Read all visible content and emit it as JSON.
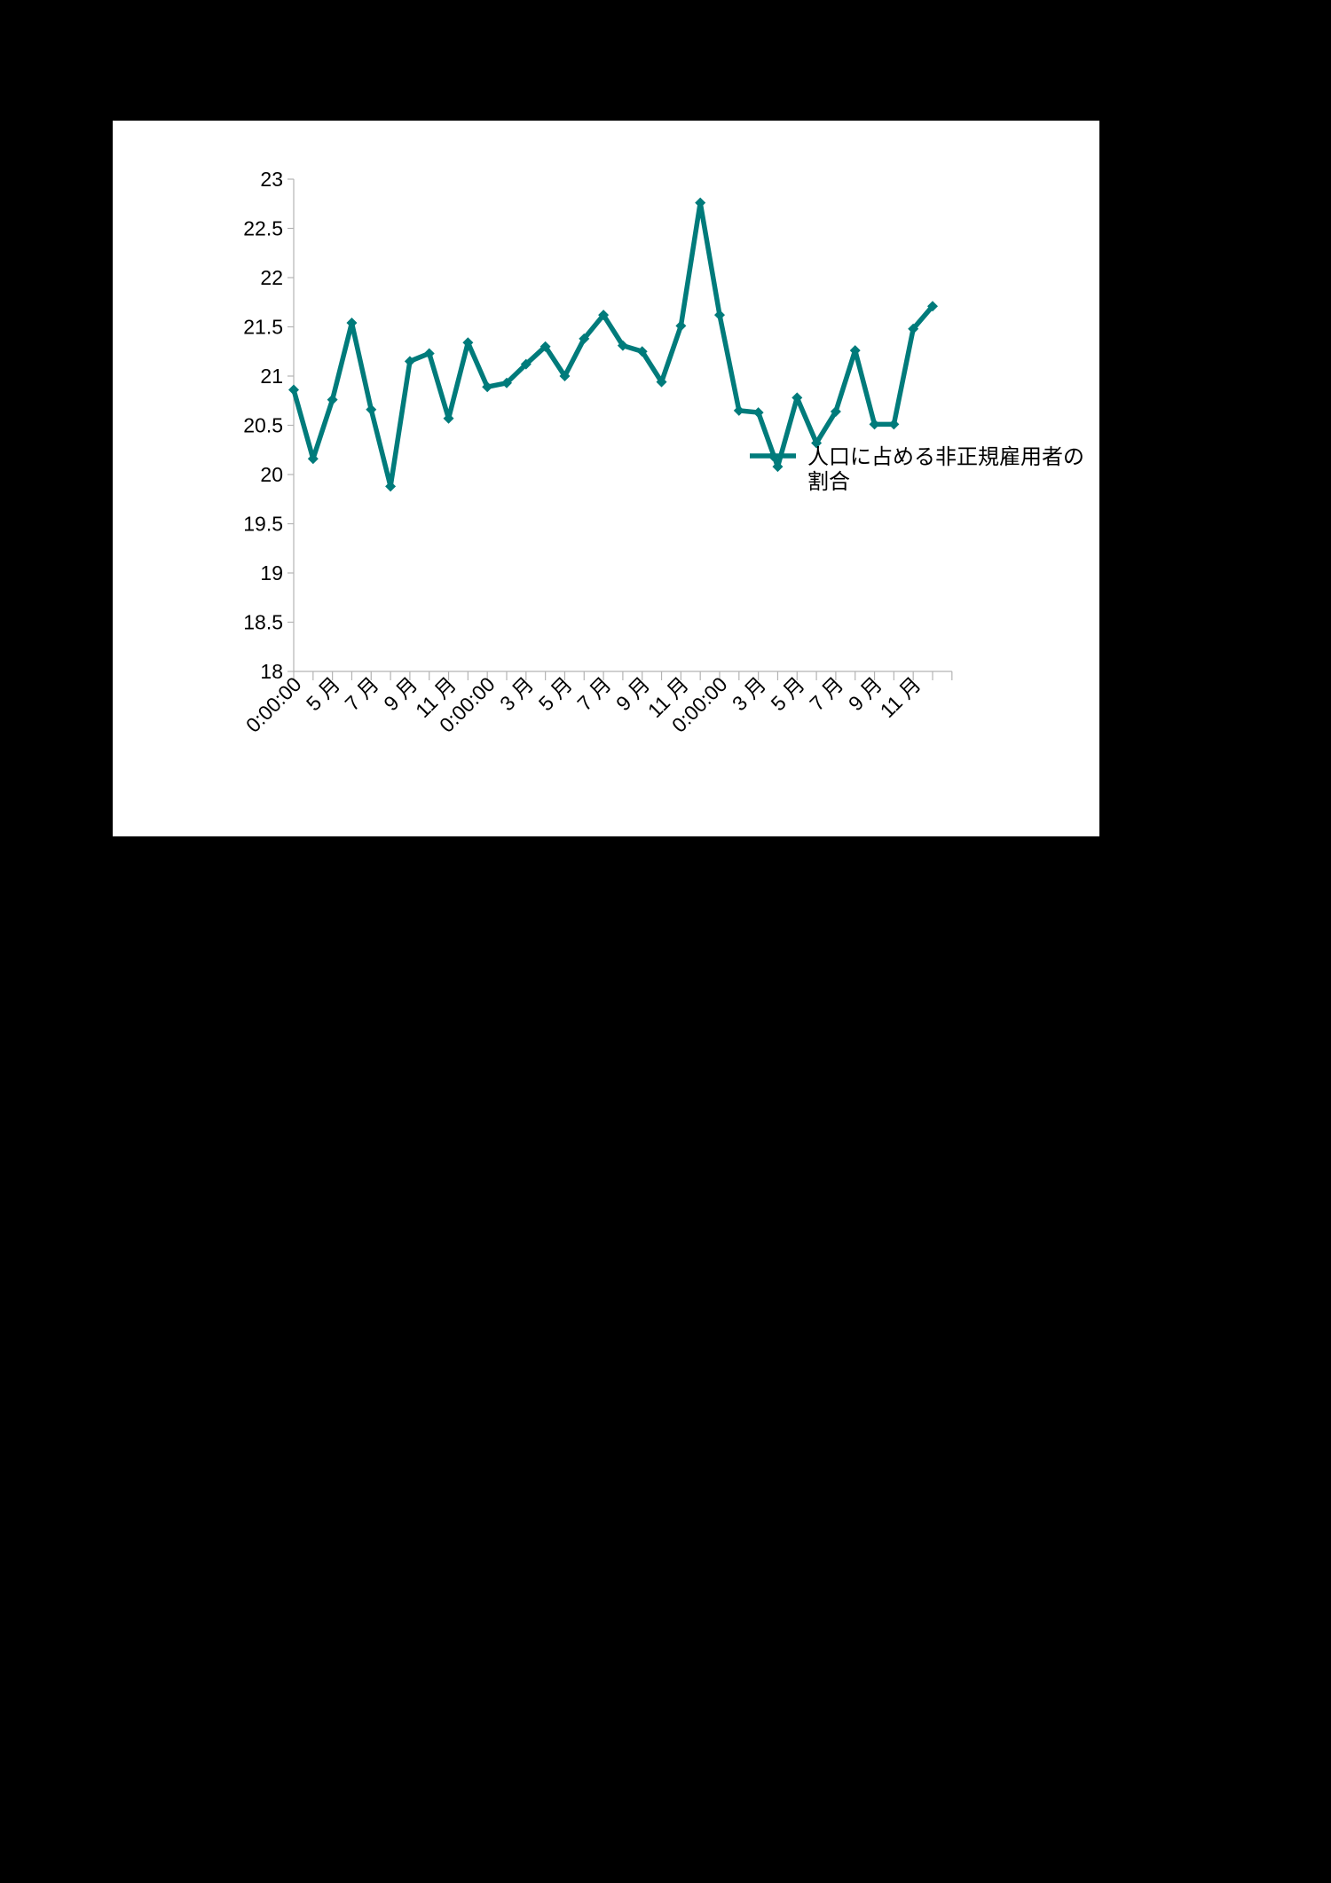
{
  "chart_data": {
    "type": "line",
    "title": "",
    "xlabel": "",
    "ylabel": "",
    "ylim": [
      18,
      23
    ],
    "ytick_step": 0.5,
    "yticks": [
      "18",
      "18.5",
      "19",
      "19.5",
      "20",
      "20.5",
      "21",
      "21.5",
      "22",
      "22.5",
      "23"
    ],
    "grid": false,
    "legend_position": "right",
    "categories": [
      "0:00:00",
      "",
      "5 月",
      "",
      "7 月",
      "",
      "9 月",
      "",
      "11 月",
      "",
      "0:00:00",
      "",
      "3 月",
      "",
      "5 月",
      "",
      "7 月",
      "",
      "9 月",
      "",
      "11 月",
      "",
      "0:00:00",
      "",
      "3 月",
      "",
      "5 月",
      "",
      "7 月",
      "",
      "9 月",
      "",
      "11 月",
      ""
    ],
    "series": [
      {
        "name": "人口に占める非正規雇用者の割合",
        "color": "#007b7b",
        "values": [
          20.86,
          20.16,
          20.76,
          21.54,
          20.66,
          19.88,
          21.15,
          21.23,
          20.57,
          21.34,
          20.89,
          20.93,
          21.12,
          21.3,
          21.0,
          21.38,
          21.62,
          21.31,
          21.25,
          20.94,
          21.51,
          22.76,
          21.62,
          20.65,
          20.63,
          20.08,
          20.78,
          20.32,
          20.64,
          21.26,
          20.51,
          20.51,
          21.48,
          21.71
        ]
      }
    ]
  }
}
